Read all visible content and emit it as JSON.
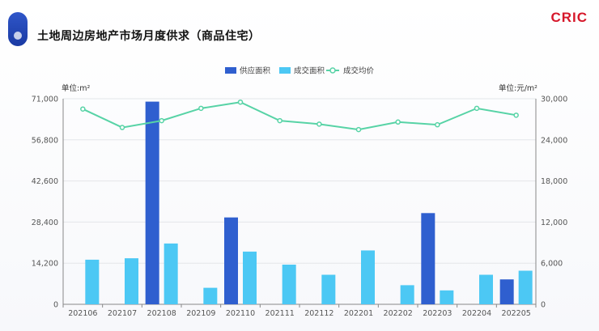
{
  "header": {
    "title": "土地周边房地产市场月度供求（商品住宅）",
    "brand": "CRIC"
  },
  "colors": {
    "supply": "#2f5fcf",
    "deal_area": "#4cc8f4",
    "deal_price": "#57d3a6",
    "axis": "#888888"
  },
  "chart_data": {
    "type": "bar",
    "categories": [
      "202106",
      "202107",
      "202108",
      "202109",
      "202110",
      "202111",
      "202112",
      "202201",
      "202202",
      "202203",
      "202204",
      "202205"
    ],
    "series": [
      {
        "name": "供应面积",
        "type": "bar",
        "axis": "left",
        "values": [
          0,
          0,
          70000,
          0,
          30000,
          0,
          0,
          0,
          0,
          31500,
          0,
          8600
        ]
      },
      {
        "name": "成交面积",
        "type": "bar",
        "axis": "left",
        "values": [
          15400,
          15900,
          21000,
          5700,
          18200,
          13700,
          10200,
          18600,
          6600,
          4800,
          10200,
          11600
        ]
      },
      {
        "name": "成交均价",
        "type": "line",
        "axis": "right",
        "values": [
          28500,
          25800,
          26800,
          28600,
          29500,
          26800,
          26300,
          25500,
          26600,
          26200,
          28600,
          27600
        ]
      }
    ],
    "y_left": {
      "unit_label": "单位:m²",
      "ticks": [
        "71,000",
        "56,800",
        "42,600",
        "28,400",
        "14,200",
        "0"
      ],
      "range": [
        0,
        71000
      ]
    },
    "y_right": {
      "unit_label": "单位:元/m²",
      "ticks": [
        "30,000",
        "24,000",
        "18,000",
        "12,000",
        "6,000",
        "0"
      ],
      "range": [
        0,
        30000
      ]
    },
    "legend_position": "top-center"
  }
}
